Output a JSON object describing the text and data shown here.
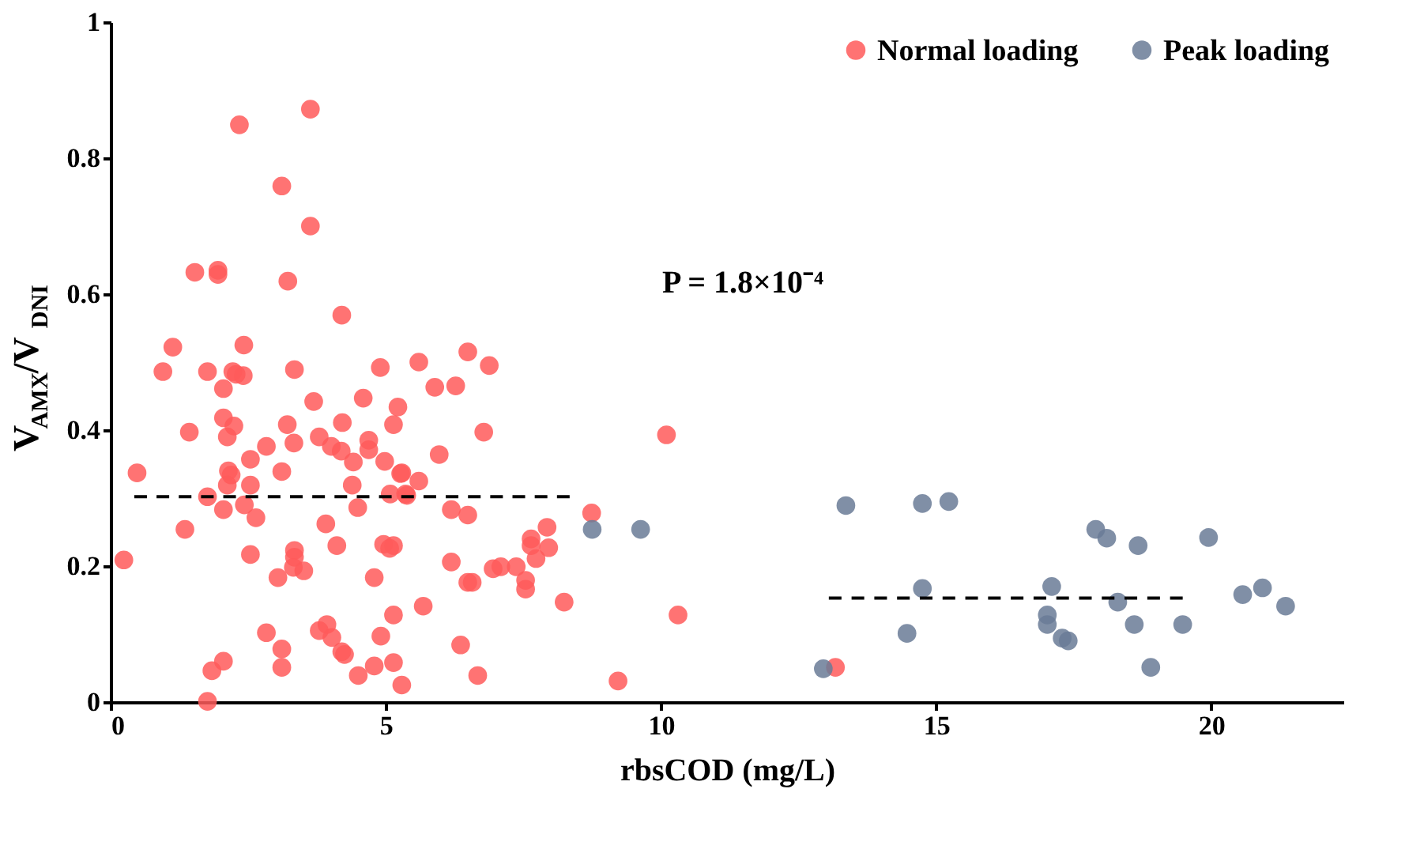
{
  "chart_data": {
    "type": "scatter",
    "xlabel": "rbsCOD (mg/L)",
    "ylabel": "V$_{AMX}$/V$_{DNI}$",
    "xlim": [
      0,
      22.4
    ],
    "xticks": [
      0,
      5,
      10,
      15,
      20
    ],
    "ylim": [
      0,
      1
    ],
    "yticks": [
      0,
      0.2,
      0.4,
      0.6,
      0.8,
      1
    ],
    "grid": false,
    "legend": "top right",
    "marker": "circle",
    "annotations": [
      "P = 1.8×10⁻⁴"
    ],
    "series": [
      {
        "name": "Normal loading",
        "color": "#ff5a5a",
        "x": [
          2.34,
          3.63,
          3.11,
          3.63,
          1.53,
          1.95,
          1.95,
          3.22,
          4.2,
          1.13,
          2.42,
          0.95,
          1.76,
          2.22,
          2.41,
          2.28,
          2.05,
          3.34,
          4.9,
          5.6,
          6.49,
          6.88,
          5.89,
          6.27,
          5.22,
          5.14,
          6.78,
          5.97,
          5.29,
          5.6,
          5.38,
          6.19,
          6.49,
          8.74,
          7.93,
          7.64,
          7.96,
          7.73,
          7.64,
          6.19,
          6.95,
          7.09,
          7.37,
          7.54,
          7.54,
          6.49,
          6.57,
          8.24,
          5.14,
          5.14,
          5.68,
          5.14,
          5.29,
          6.36,
          6.67,
          9.22,
          10.1,
          10.31,
          3.69,
          4.59,
          1.43,
          2.05,
          2.24,
          2.12,
          3.21,
          4.21,
          2.83,
          3.33,
          3.79,
          4.01,
          4.19,
          4.41,
          4.69,
          4.69,
          4.98,
          5.27,
          0.48,
          2.14,
          2.19,
          2.54,
          2.54,
          2.12,
          3.11,
          4.39,
          5.08,
          5.36,
          1.76,
          2.05,
          2.43,
          2.64,
          4.49,
          1.35,
          3.91,
          2.54,
          3.34,
          3.34,
          4.11,
          4.96,
          5.07,
          0.24,
          3.04,
          3.32,
          3.51,
          4.79,
          2.83,
          3.11,
          3.11,
          3.79,
          3.93,
          4.02,
          4.2,
          4.25,
          4.91,
          4.79,
          4.5,
          2.05,
          1.84,
          1.76,
          13.17
        ],
        "values": [
          0.849,
          0.872,
          0.759,
          0.7,
          0.632,
          0.635,
          0.629,
          0.619,
          0.569,
          0.522,
          0.525,
          0.486,
          0.486,
          0.486,
          0.48,
          0.482,
          0.461,
          0.489,
          0.492,
          0.5,
          0.515,
          0.495,
          0.463,
          0.465,
          0.434,
          0.408,
          0.397,
          0.364,
          0.337,
          0.325,
          0.304,
          0.283,
          0.275,
          0.278,
          0.257,
          0.24,
          0.227,
          0.211,
          0.23,
          0.206,
          0.196,
          0.199,
          0.199,
          0.179,
          0.166,
          0.176,
          0.176,
          0.147,
          0.23,
          0.128,
          0.141,
          0.058,
          0.025,
          0.084,
          0.039,
          0.031,
          0.393,
          0.128,
          0.442,
          0.447,
          0.397,
          0.418,
          0.406,
          0.39,
          0.408,
          0.411,
          0.376,
          0.381,
          0.39,
          0.376,
          0.369,
          0.353,
          0.385,
          0.371,
          0.354,
          0.336,
          0.337,
          0.34,
          0.334,
          0.357,
          0.319,
          0.319,
          0.339,
          0.319,
          0.306,
          0.306,
          0.302,
          0.283,
          0.29,
          0.271,
          0.286,
          0.254,
          0.262,
          0.217,
          0.223,
          0.213,
          0.23,
          0.232,
          0.226,
          0.209,
          0.183,
          0.198,
          0.193,
          0.183,
          0.102,
          0.078,
          0.051,
          0.105,
          0.114,
          0.095,
          0.074,
          0.07,
          0.097,
          0.053,
          0.039,
          0.06,
          0.046,
          0.001,
          0.051
        ]
      },
      {
        "name": "Peak loading",
        "color": "#6a7b96",
        "x": [
          8.75,
          9.63,
          13.36,
          14.75,
          15.23,
          17.9,
          18.1,
          18.67,
          19.95,
          14.75,
          17.1,
          18.3,
          20.57,
          20.93,
          21.35,
          14.47,
          17.02,
          17.02,
          17.29,
          17.4,
          18.6,
          19.48,
          18.9,
          12.95
        ],
        "values": [
          0.254,
          0.254,
          0.289,
          0.292,
          0.295,
          0.254,
          0.241,
          0.23,
          0.242,
          0.167,
          0.17,
          0.147,
          0.158,
          0.168,
          0.141,
          0.101,
          0.128,
          0.114,
          0.094,
          0.09,
          0.114,
          0.114,
          0.051,
          0.049
        ]
      },
      {
        "type": "line",
        "color": "#000000",
        "line_style": "dashed",
        "marker": "none",
        "x": [
          0.43,
          8.34
        ],
        "values": [
          0.302,
          0.302
        ]
      },
      {
        "type": "line",
        "color": "#000000",
        "line_style": "dashed",
        "marker": "none",
        "x": [
          13.05,
          19.48
        ],
        "values": [
          0.153,
          0.153
        ]
      }
    ]
  }
}
